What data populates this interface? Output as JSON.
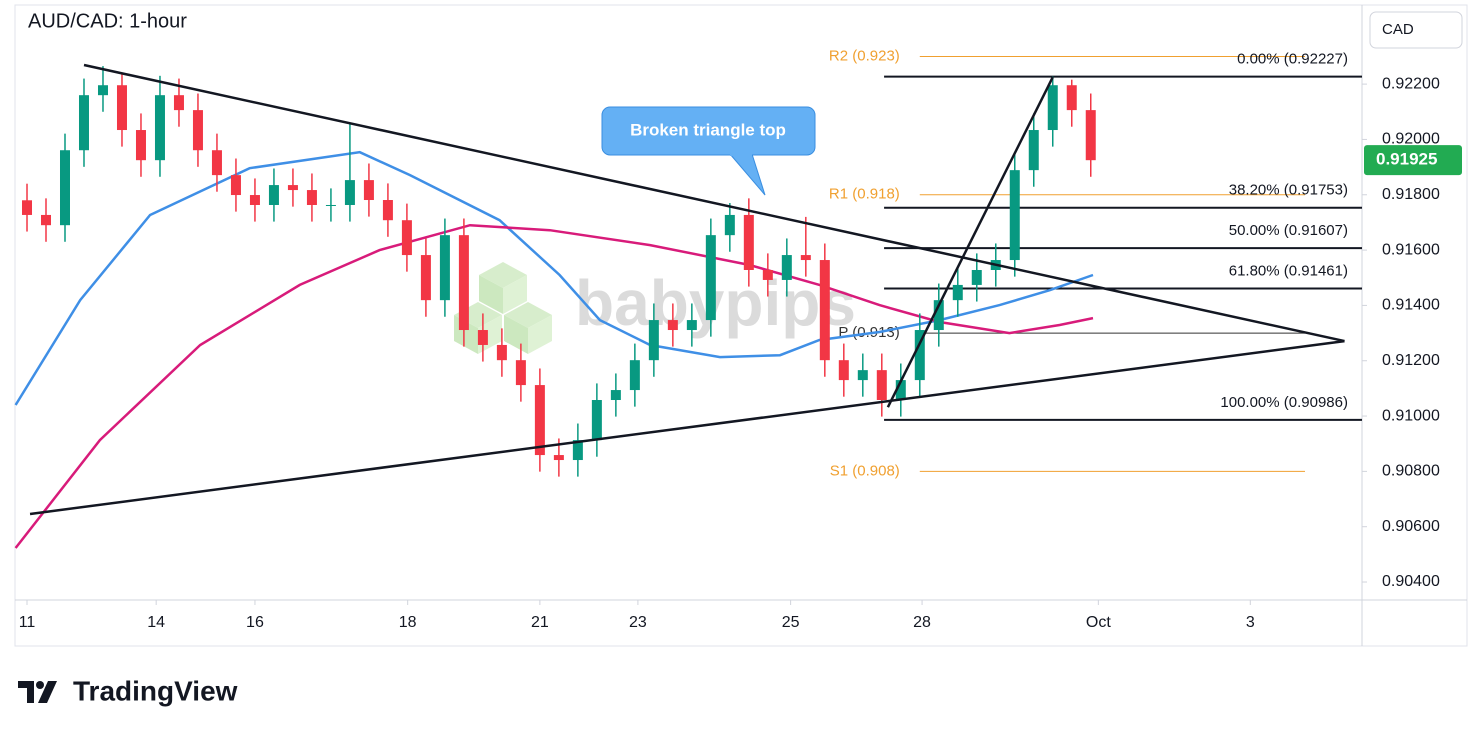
{
  "chart_data": {
    "type": "candlestick",
    "title": "AUD/CAD: 1-hour",
    "currency": "CAD",
    "x": [
      0,
      0.25,
      0.5,
      0.75,
      1,
      1.25,
      1.5,
      1.75,
      2,
      2.25,
      2.5,
      2.75,
      3,
      3.25,
      3.5,
      3.75,
      4,
      4.25,
      4.5,
      4.75,
      5,
      5.25,
      5.5,
      5.75,
      6,
      6.25,
      6.5,
      6.75,
      7,
      7.25,
      7.5,
      7.75,
      8,
      8.25,
      8.5,
      8.75,
      9,
      9.25,
      9.5,
      9.75,
      10,
      10.25,
      10.5,
      10.75,
      11,
      11.25,
      11.5,
      11.75,
      12,
      12.25,
      12.5,
      12.75,
      13,
      13.25,
      13.5,
      13.75,
      14
    ],
    "open": [
      0.9178,
      0.91727,
      0.9169,
      0.91961,
      0.9216,
      0.92196,
      0.92034,
      0.91925,
      0.9216,
      0.92106,
      0.91961,
      0.91871,
      0.91799,
      0.91763,
      0.91835,
      0.91817,
      0.91763,
      0.91763,
      0.91853,
      0.91781,
      0.91708,
      0.91582,
      0.91419,
      0.91654,
      0.91311,
      0.91257,
      0.91202,
      0.91112,
      0.90859,
      0.90841,
      0.90913,
      0.91058,
      0.91094,
      0.91202,
      0.91347,
      0.91311,
      0.91347,
      0.91654,
      0.91727,
      0.91528,
      0.91492,
      0.91582,
      0.91564,
      0.91202,
      0.9113,
      0.91166,
      0.91058,
      0.9113,
      0.91311,
      0.91419,
      0.91474,
      0.91528,
      0.91564,
      0.91889,
      0.92034,
      0.92196,
      0.92106
    ],
    "high": [
      0.9184,
      0.91787,
      0.92021,
      0.9222,
      0.92265,
      0.92236,
      0.92094,
      0.9223,
      0.9222,
      0.92166,
      0.92021,
      0.91931,
      0.91859,
      0.91895,
      0.91895,
      0.91877,
      0.91823,
      0.9206,
      0.91913,
      0.91841,
      0.91768,
      0.91642,
      0.91714,
      0.91714,
      0.91371,
      0.91317,
      0.91262,
      0.91172,
      0.90919,
      0.90973,
      0.91118,
      0.91154,
      0.91262,
      0.91407,
      0.91407,
      0.91407,
      0.91714,
      0.9177,
      0.91787,
      0.91588,
      0.91642,
      0.9172,
      0.91624,
      0.91262,
      0.91226,
      0.91226,
      0.9119,
      0.91371,
      0.91479,
      0.91534,
      0.91588,
      0.91624,
      0.91949,
      0.92094,
      0.92227,
      0.92216,
      0.92166
    ],
    "low": [
      0.91667,
      0.9163,
      0.9163,
      0.91901,
      0.921,
      0.91974,
      0.91865,
      0.91865,
      0.92046,
      0.91901,
      0.91811,
      0.91739,
      0.91703,
      0.91703,
      0.91757,
      0.91703,
      0.91703,
      0.91703,
      0.91721,
      0.91648,
      0.91522,
      0.91359,
      0.91359,
      0.91251,
      0.91197,
      0.91142,
      0.91052,
      0.90799,
      0.90781,
      0.90781,
      0.90853,
      0.90998,
      0.91034,
      0.91142,
      0.91251,
      0.91251,
      0.91287,
      0.91594,
      0.91468,
      0.91432,
      0.91432,
      0.91504,
      0.91142,
      0.9107,
      0.9107,
      0.90998,
      0.90998,
      0.9107,
      0.91251,
      0.91359,
      0.91414,
      0.91468,
      0.91504,
      0.91829,
      0.91974,
      0.92046,
      0.91865
    ],
    "close": [
      0.91727,
      0.9169,
      0.91961,
      0.9216,
      0.92196,
      0.92034,
      0.91925,
      0.9216,
      0.92106,
      0.91961,
      0.91871,
      0.91799,
      0.91763,
      0.91835,
      0.91817,
      0.91763,
      0.91763,
      0.91853,
      0.91781,
      0.91708,
      0.91582,
      0.91419,
      0.91654,
      0.91311,
      0.91257,
      0.91202,
      0.91112,
      0.90859,
      0.90841,
      0.90913,
      0.91058,
      0.91094,
      0.91202,
      0.91347,
      0.91311,
      0.91347,
      0.91654,
      0.91727,
      0.91528,
      0.91492,
      0.91582,
      0.91564,
      0.91202,
      0.9113,
      0.91166,
      0.91058,
      0.9113,
      0.91311,
      0.91419,
      0.91474,
      0.91528,
      0.91564,
      0.91889,
      0.92034,
      0.92196,
      0.92106,
      0.91925
    ],
    "up_color": "#089981",
    "down_color": "#f23645",
    "last_price": 0.91925,
    "last_price_color": "#22ab52",
    "moving_averages": [
      {
        "color": "#3f8fe6",
        "x": [
          -0.15,
          0.7,
          1.62,
          2.93,
          4.38,
          5.04,
          6.22,
          7.01,
          7.54,
          8.2,
          9.12,
          9.91,
          10.43,
          11.22,
          12.01,
          12.8,
          13.46,
          14.03
        ],
        "values": [
          0.9104,
          0.91419,
          0.91727,
          0.91896,
          0.91954,
          0.91871,
          0.91708,
          0.9151,
          0.91347,
          0.91257,
          0.91213,
          0.9122,
          0.91275,
          0.91304,
          0.91347,
          0.91401,
          0.91455,
          0.9151
        ]
      },
      {
        "color": "#d81b7a",
        "x": [
          -0.15,
          0.96,
          2.28,
          3.59,
          4.64,
          5.83,
          6.88,
          8.2,
          9.51,
          10.43,
          11.22,
          12.01,
          12.93,
          13.59,
          14.03
        ],
        "values": [
          0.90523,
          0.90913,
          0.91257,
          0.91474,
          0.916,
          0.9169,
          0.91672,
          0.91618,
          0.91546,
          0.91474,
          0.91401,
          0.9134,
          0.913,
          0.91329,
          0.91354
        ]
      }
    ],
    "trendlines": [
      {
        "x": [
          0.75,
          17.34
        ],
        "y": [
          0.92269,
          0.91271
        ]
      },
      {
        "x": [
          0.04,
          17.34
        ],
        "y": [
          0.90646,
          0.91271
        ]
      },
      {
        "x": [
          11.33,
          13.5
        ],
        "y": [
          0.91032,
          0.92225
        ]
      }
    ],
    "fib_levels": [
      {
        "value": 0.92227,
        "label": "0.00% (0.92227)"
      },
      {
        "value": 0.91753,
        "label": "38.20% (0.91753)"
      },
      {
        "value": 0.91607,
        "label": "50.00% (0.91607)"
      },
      {
        "value": 0.91461,
        "label": "61.80% (0.91461)"
      },
      {
        "value": 0.90986,
        "label": "100.00% (0.90986)"
      }
    ],
    "fib_x_start": 11.28,
    "pivots": [
      {
        "value": 0.923,
        "label": "R2 (0.923)",
        "color": "#f0a030"
      },
      {
        "value": 0.918,
        "label": "R1 (0.918)",
        "color": "#f0a030"
      },
      {
        "value": 0.913,
        "label": "P (0.913)",
        "color": "#333333"
      },
      {
        "value": 0.908,
        "label": "S1 (0.908)",
        "color": "#f0a030"
      }
    ],
    "pivot_x": [
      11.75,
      16.82
    ],
    "annotation": "Broken triangle top",
    "xlim": [
      -0.158,
      17.57
    ],
    "ylim": [
      0.90335,
      0.92486
    ],
    "xticks": [
      {
        "value": 0,
        "label": "11"
      },
      {
        "value": 1.7,
        "label": "14"
      },
      {
        "value": 3.0,
        "label": "16"
      },
      {
        "value": 5.01,
        "label": "18"
      },
      {
        "value": 6.75,
        "label": "21"
      },
      {
        "value": 8.04,
        "label": "23"
      },
      {
        "value": 10.05,
        "label": "25"
      },
      {
        "value": 11.78,
        "label": "28"
      },
      {
        "value": 14.1,
        "label": "Oct"
      },
      {
        "value": 16.1,
        "label": "3"
      }
    ],
    "yticks": [
      {
        "value": 0.922,
        "label": "0.92200"
      },
      {
        "value": 0.92,
        "label": "0.92000"
      },
      {
        "value": 0.918,
        "label": "0.91800"
      },
      {
        "value": 0.916,
        "label": "0.91600"
      },
      {
        "value": 0.914,
        "label": "0.91400"
      },
      {
        "value": 0.912,
        "label": "0.91200"
      },
      {
        "value": 0.91,
        "label": "0.91000"
      },
      {
        "value": 0.908,
        "label": "0.90800"
      },
      {
        "value": 0.906,
        "label": "0.90600"
      },
      {
        "value": 0.904,
        "label": "0.90400"
      }
    ]
  },
  "watermark": "babypips",
  "brand": "TradingView"
}
